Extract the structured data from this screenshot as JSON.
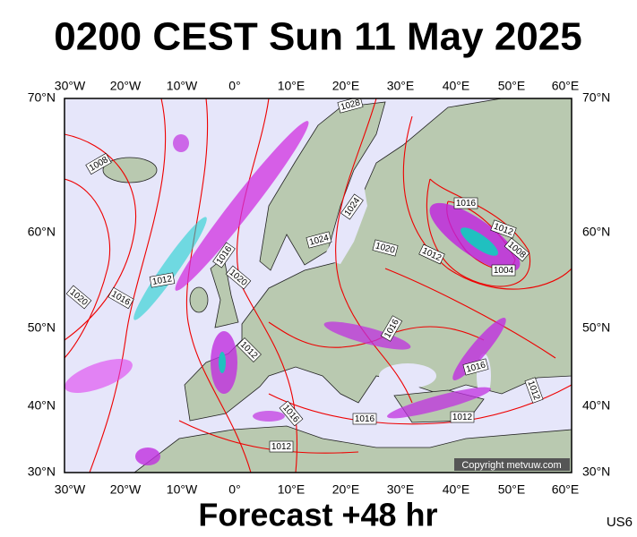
{
  "title": "0200 CEST Sun 11 May 2025",
  "longitude_labels": [
    "30°W",
    "20°W",
    "10°W",
    "0°",
    "10°E",
    "20°E",
    "30°E",
    "40°E",
    "50°E",
    "60°E"
  ],
  "latitude_labels": [
    "70°N",
    "60°N",
    "50°N",
    "40°N",
    "30°N"
  ],
  "isobar_labels": [
    "1028",
    "1008",
    "1012",
    "1016",
    "1020",
    "1016",
    "1020",
    "1024",
    "1024",
    "1020",
    "1012",
    "1016",
    "1012",
    "1008",
    "1004",
    "1012",
    "1016",
    "1016",
    "1016",
    "1016",
    "1012",
    "1012",
    "1012"
  ],
  "copyright": "Copyright metvuw.com",
  "footer": "Forecast +48 hr",
  "code": "US6"
}
